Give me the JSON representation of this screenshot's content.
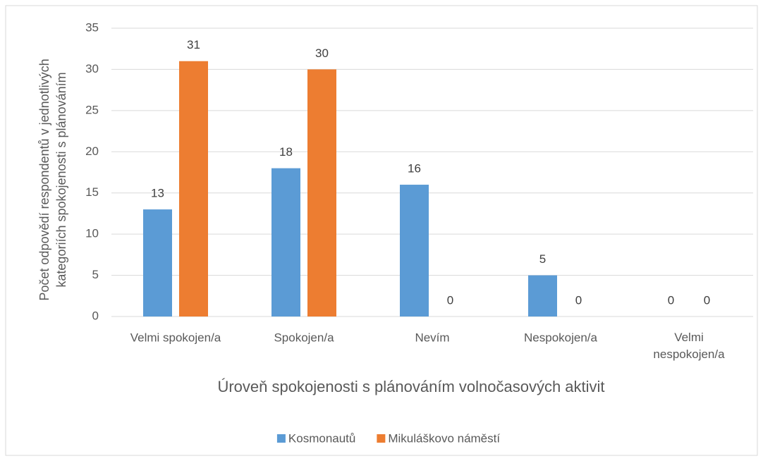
{
  "chart_data": {
    "type": "bar",
    "categories": [
      "Velmi spokojen/a",
      "Spokojen/a",
      "Nevím",
      "Nespokojen/a",
      "Velmi nespokojen/a"
    ],
    "series": [
      {
        "name": "Kosmonautů",
        "color": "#5b9bd5",
        "values": [
          13,
          18,
          16,
          5,
          0
        ]
      },
      {
        "name": "Mikuláškovo náměstí",
        "color": "#ed7d31",
        "values": [
          31,
          30,
          0,
          0,
          0
        ]
      }
    ],
    "xlabel": "Úroveň spokojenosti s plánováním volnočasových aktivit",
    "ylabel": "Počet odpovědí respondentů v jednotlivých kategoriích spokojenosti s plánováním",
    "ylim": [
      0,
      35
    ],
    "yticks": [
      0,
      5,
      10,
      15,
      20,
      25,
      30,
      35
    ],
    "grid": true,
    "legend": "bottom"
  }
}
